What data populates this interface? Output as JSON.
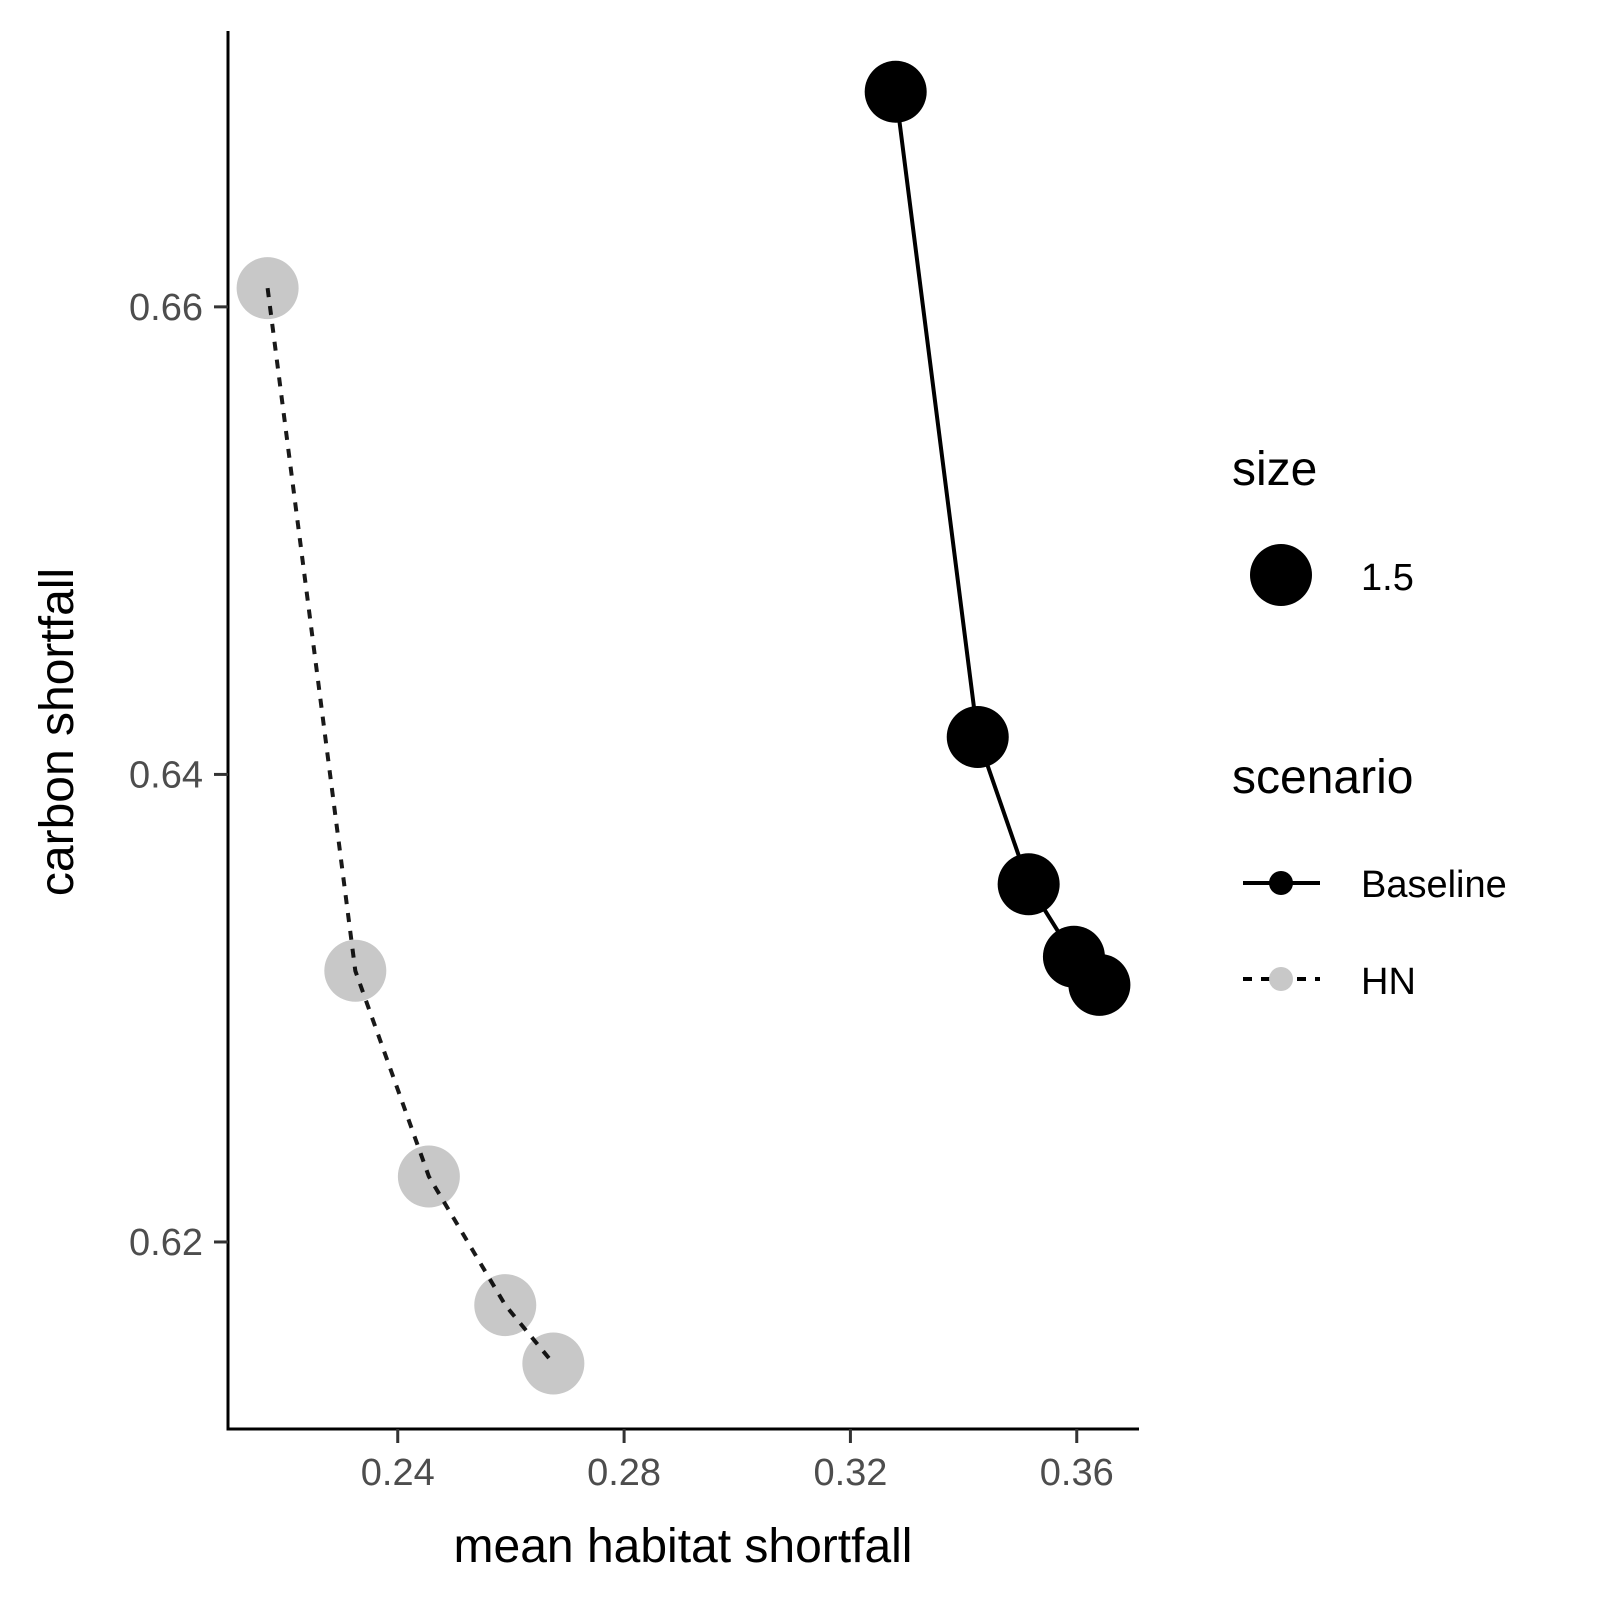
{
  "chart_data": {
    "type": "line",
    "xlabel": "mean habitat shortfall",
    "ylabel": "carbon shortfall",
    "xlim": [
      0.21,
      0.371
    ],
    "ylim": [
      0.612,
      0.6718
    ],
    "x_ticks": [
      0.24,
      0.28,
      0.32,
      0.36
    ],
    "x_tick_labels": [
      "0.24",
      "0.28",
      "0.32",
      "0.36"
    ],
    "y_ticks": [
      0.62,
      0.64,
      0.66
    ],
    "y_tick_labels": [
      "0.62",
      "0.64",
      "0.66"
    ],
    "grid": false,
    "legend_placement": "right",
    "series": [
      {
        "name": "Baseline",
        "color": "#000000",
        "line_style": "solid",
        "x": [
          0.328,
          0.3425,
          0.3515,
          0.3595,
          0.364
        ],
        "y": [
          0.6692,
          0.6416,
          0.6353,
          0.6322,
          0.631
        ]
      },
      {
        "name": "HN",
        "color": "#c8c8c8",
        "line_style": "dashed",
        "x": [
          0.217,
          0.2325,
          0.2455,
          0.259,
          0.2675
        ],
        "y": [
          0.6608,
          0.6316,
          0.6228,
          0.6173,
          0.6148
        ]
      }
    ],
    "legend": {
      "size_title": "size",
      "size_label": "1.5",
      "scenario_title": "scenario",
      "scenario_labels": [
        "Baseline",
        "HN"
      ]
    }
  }
}
